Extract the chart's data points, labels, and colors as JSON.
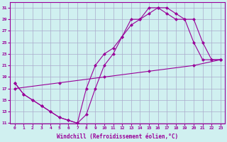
{
  "xlabel": "Windchill (Refroidissement éolien,°C)",
  "bg_color": "#d0f0f0",
  "line_color": "#990099",
  "grid_color": "#aaaacc",
  "xlim": [
    -0.5,
    23.5
  ],
  "ylim": [
    11,
    32
  ],
  "xticks": [
    0,
    1,
    2,
    3,
    4,
    5,
    6,
    7,
    8,
    9,
    10,
    11,
    12,
    13,
    14,
    15,
    16,
    17,
    18,
    19,
    20,
    21,
    22,
    23
  ],
  "yticks": [
    11,
    13,
    15,
    17,
    19,
    21,
    23,
    25,
    27,
    29,
    31
  ],
  "line1_x": [
    0,
    1,
    2,
    3,
    4,
    5,
    6,
    7,
    8,
    9,
    10,
    11,
    12,
    13,
    14,
    15,
    16,
    17,
    18,
    19,
    20,
    21,
    22,
    23
  ],
  "line1_y": [
    18,
    16,
    15,
    14,
    13,
    12,
    11.5,
    11,
    12.5,
    17,
    21,
    23,
    26,
    28,
    29,
    30,
    31,
    31,
    30,
    29,
    25,
    22,
    22,
    22
  ],
  "line2_x": [
    0,
    5,
    10,
    15,
    20,
    23
  ],
  "line2_y": [
    17,
    18,
    19,
    20,
    21,
    22
  ],
  "line3_x": [
    0,
    1,
    2,
    3,
    4,
    5,
    6,
    7,
    8,
    9,
    10,
    11,
    12,
    13,
    14,
    15,
    16,
    17,
    18,
    19,
    20,
    21,
    22,
    23
  ],
  "line3_y": [
    18,
    16,
    15,
    14,
    13,
    12,
    11.5,
    11,
    17,
    21,
    23,
    24,
    26,
    29,
    29,
    31,
    31,
    30,
    29,
    29,
    29,
    25,
    22,
    22
  ]
}
